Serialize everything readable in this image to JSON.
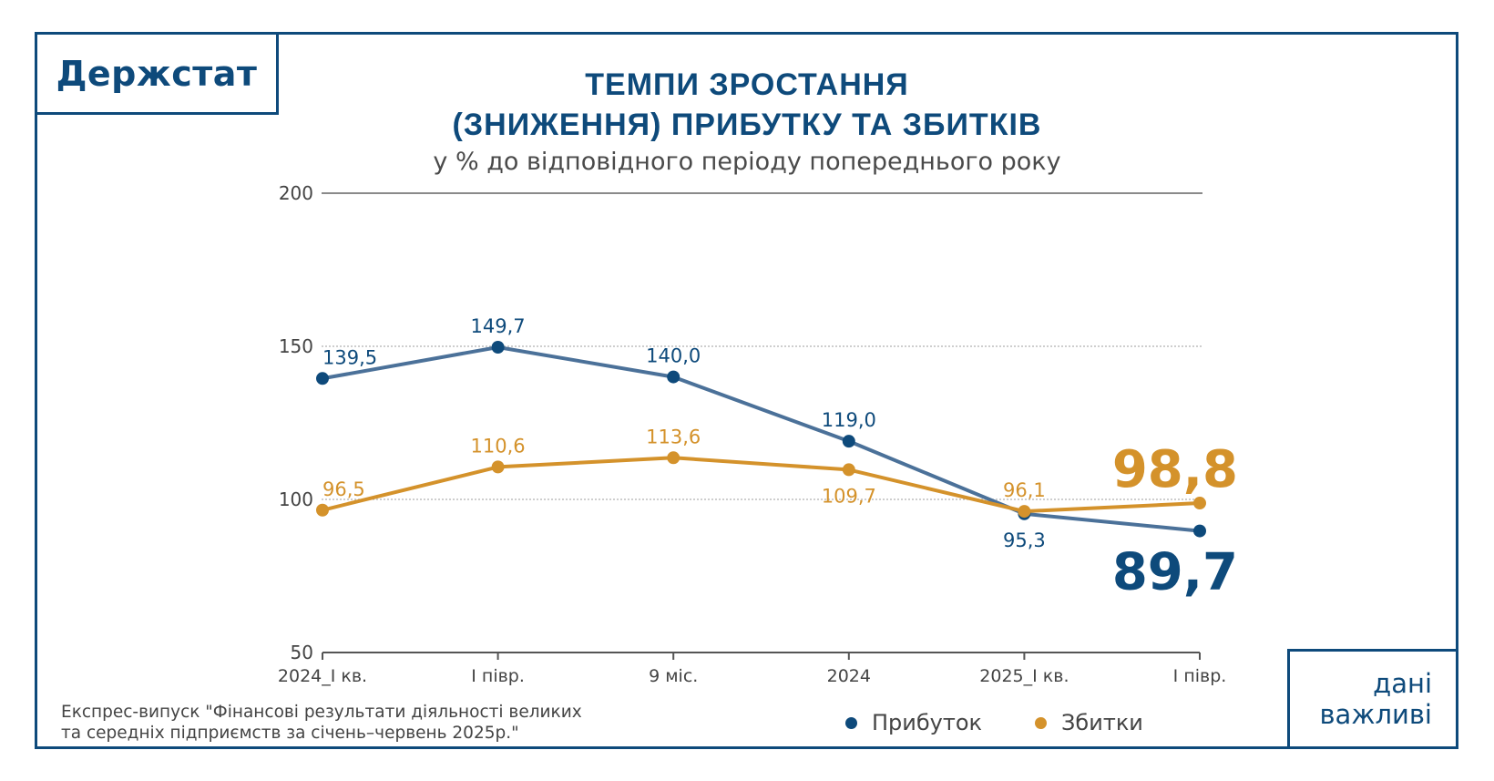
{
  "logo": {
    "text": "Держстат"
  },
  "badge": {
    "line1": "дані",
    "line2": "важливі"
  },
  "header": {
    "title_line1": "ТЕМПИ ЗРОСТАННЯ",
    "title_line2": "(ЗНИЖЕННЯ) ПРИБУТКУ ТА ЗБИТКІВ",
    "subtitle": "у % до відповідного періоду попереднього року"
  },
  "source": {
    "line1": "Експрес-випуск \"Фінансові результати діяльності великих",
    "line2": "та середніх підприємств за січень–червень 2025р.\""
  },
  "colors": {
    "profit": "#0e4a7b",
    "profit_line": "#4b7199",
    "loss": "#d4922b",
    "frame": "#0e4a7b"
  },
  "chart_data": {
    "type": "line",
    "title": "ТЕМПИ ЗРОСТАННЯ (ЗНИЖЕННЯ) ПРИБУТКУ ТА ЗБИТКІВ",
    "subtitle": "у % до відповідного періоду попереднього року",
    "xlabel": "",
    "ylabel": "",
    "categories": [
      "2024_I кв.",
      "I півр.",
      "9 міс.",
      "2024",
      "2025_I кв.",
      "I півр."
    ],
    "y_ticks": [
      "200",
      "150",
      "100",
      "50"
    ],
    "y_tick_values": [
      200,
      150,
      100,
      50
    ],
    "ylim": [
      50,
      200
    ],
    "grid": "horizontal-dotted",
    "legend_position": "bottom",
    "series": [
      {
        "name": "Прибуток",
        "values": [
          139.5,
          149.7,
          140.0,
          119.0,
          95.3,
          89.7
        ],
        "labels": [
          "139,5",
          "149,7",
          "140,0",
          "119,0",
          "95,3",
          "89,7"
        ],
        "label_pos": [
          "above",
          "above",
          "above",
          "above",
          "below",
          "below-big"
        ]
      },
      {
        "name": "Збитки",
        "values": [
          96.5,
          110.6,
          113.6,
          109.7,
          96.1,
          98.8
        ],
        "labels": [
          "96,5",
          "110,6",
          "113,6",
          "109,7",
          "96,1",
          "98,8"
        ],
        "label_pos": [
          "above",
          "above",
          "above",
          "below",
          "above",
          "above-big"
        ]
      }
    ]
  },
  "legend": [
    {
      "label": "Прибуток",
      "color": "#0e4a7b"
    },
    {
      "label": "Збитки",
      "color": "#d4922b"
    }
  ]
}
